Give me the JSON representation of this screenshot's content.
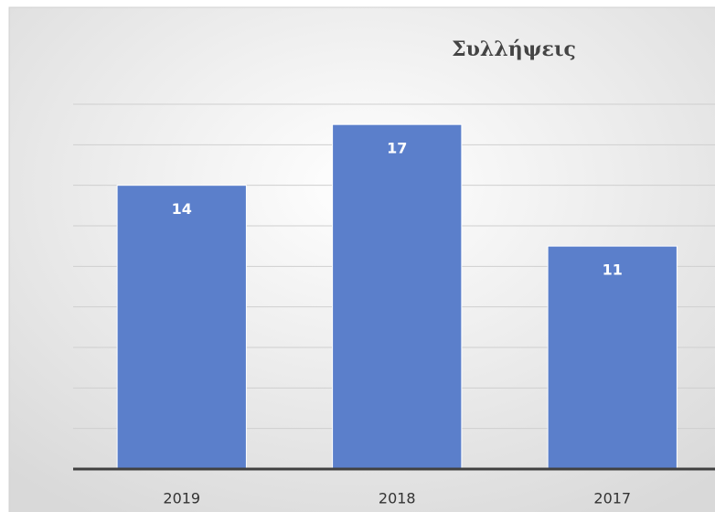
{
  "chart_data": {
    "type": "bar",
    "title": "Συλλήψεις",
    "categories": [
      "2019",
      "2018",
      "2017"
    ],
    "values": [
      14,
      17,
      11
    ],
    "color": "#5b7fcb",
    "ylim": [
      0,
      18
    ],
    "yticks": [
      0,
      2,
      4,
      6,
      8,
      10,
      12,
      14,
      16,
      18
    ],
    "grid": true
  }
}
